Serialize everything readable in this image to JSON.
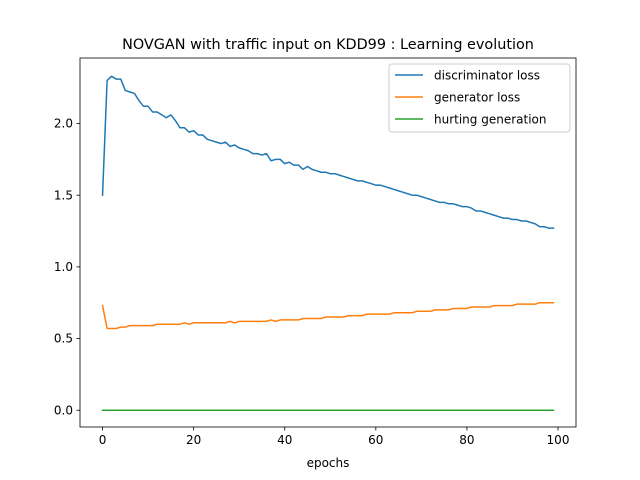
{
  "chart_data": {
    "type": "line",
    "title": "NOVGAN with traffic input on KDD99 : Learning evolution",
    "xlabel": "epochs",
    "ylabel": "",
    "xlim": [
      -4.95,
      103.95
    ],
    "ylim": [
      -0.117,
      2.457
    ],
    "x_ticks": [
      0,
      20,
      40,
      60,
      80,
      100
    ],
    "y_ticks": [
      0.0,
      0.5,
      1.0,
      1.5,
      2.0
    ],
    "x_tick_labels": [
      "0",
      "20",
      "40",
      "60",
      "80",
      "100"
    ],
    "y_tick_labels": [
      "0.0",
      "0.5",
      "1.0",
      "1.5",
      "2.0"
    ],
    "grid": false,
    "legend_position": "top-right",
    "x": [
      0,
      1,
      2,
      3,
      4,
      5,
      6,
      7,
      8,
      9,
      10,
      11,
      12,
      13,
      14,
      15,
      16,
      17,
      18,
      19,
      20,
      21,
      22,
      23,
      24,
      25,
      26,
      27,
      28,
      29,
      30,
      31,
      32,
      33,
      34,
      35,
      36,
      37,
      38,
      39,
      40,
      41,
      42,
      43,
      44,
      45,
      46,
      47,
      48,
      49,
      50,
      51,
      52,
      53,
      54,
      55,
      56,
      57,
      58,
      59,
      60,
      61,
      62,
      63,
      64,
      65,
      66,
      67,
      68,
      69,
      70,
      71,
      72,
      73,
      74,
      75,
      76,
      77,
      78,
      79,
      80,
      81,
      82,
      83,
      84,
      85,
      86,
      87,
      88,
      89,
      90,
      91,
      92,
      93,
      94,
      95,
      96,
      97,
      98,
      99
    ],
    "series": [
      {
        "name": "discriminator loss",
        "color": "#1f77b4",
        "values": [
          1.5,
          2.3,
          2.33,
          2.31,
          2.31,
          2.23,
          2.22,
          2.21,
          2.16,
          2.12,
          2.12,
          2.08,
          2.08,
          2.06,
          2.04,
          2.06,
          2.02,
          1.97,
          1.97,
          1.94,
          1.95,
          1.92,
          1.92,
          1.89,
          1.88,
          1.87,
          1.86,
          1.87,
          1.84,
          1.85,
          1.83,
          1.82,
          1.81,
          1.79,
          1.79,
          1.78,
          1.79,
          1.74,
          1.75,
          1.75,
          1.72,
          1.73,
          1.71,
          1.71,
          1.68,
          1.7,
          1.68,
          1.67,
          1.66,
          1.66,
          1.65,
          1.65,
          1.64,
          1.63,
          1.62,
          1.61,
          1.6,
          1.6,
          1.59,
          1.58,
          1.57,
          1.57,
          1.56,
          1.55,
          1.54,
          1.53,
          1.52,
          1.51,
          1.5,
          1.5,
          1.49,
          1.48,
          1.47,
          1.46,
          1.45,
          1.45,
          1.44,
          1.44,
          1.43,
          1.42,
          1.42,
          1.41,
          1.39,
          1.39,
          1.38,
          1.37,
          1.36,
          1.35,
          1.34,
          1.34,
          1.33,
          1.33,
          1.32,
          1.32,
          1.31,
          1.3,
          1.28,
          1.28,
          1.27,
          1.27
        ]
      },
      {
        "name": "generator loss",
        "color": "#ff7f0e",
        "values": [
          0.73,
          0.57,
          0.57,
          0.57,
          0.58,
          0.58,
          0.59,
          0.59,
          0.59,
          0.59,
          0.59,
          0.59,
          0.6,
          0.6,
          0.6,
          0.6,
          0.6,
          0.6,
          0.61,
          0.6,
          0.61,
          0.61,
          0.61,
          0.61,
          0.61,
          0.61,
          0.61,
          0.61,
          0.62,
          0.61,
          0.62,
          0.62,
          0.62,
          0.62,
          0.62,
          0.62,
          0.62,
          0.63,
          0.62,
          0.63,
          0.63,
          0.63,
          0.63,
          0.63,
          0.64,
          0.64,
          0.64,
          0.64,
          0.64,
          0.65,
          0.65,
          0.65,
          0.65,
          0.65,
          0.66,
          0.66,
          0.66,
          0.66,
          0.67,
          0.67,
          0.67,
          0.67,
          0.67,
          0.67,
          0.68,
          0.68,
          0.68,
          0.68,
          0.68,
          0.69,
          0.69,
          0.69,
          0.69,
          0.7,
          0.7,
          0.7,
          0.7,
          0.71,
          0.71,
          0.71,
          0.71,
          0.72,
          0.72,
          0.72,
          0.72,
          0.72,
          0.73,
          0.73,
          0.73,
          0.73,
          0.73,
          0.74,
          0.74,
          0.74,
          0.74,
          0.74,
          0.75,
          0.75,
          0.75,
          0.75
        ]
      },
      {
        "name": "hurting generation",
        "color": "#2ca02c",
        "constant": 0.0
      }
    ]
  }
}
